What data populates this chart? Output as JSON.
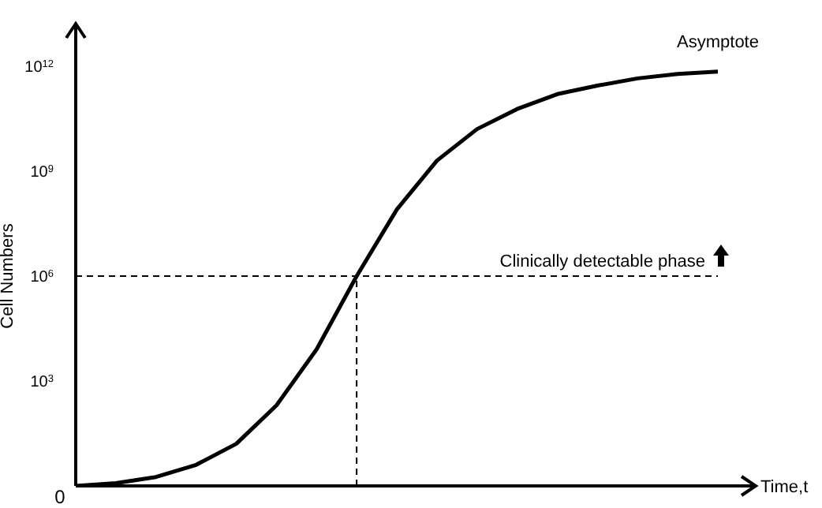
{
  "chart_data": {
    "type": "line",
    "xlabel": "Time,t",
    "ylabel": "Cell Numbers",
    "annotations": [
      "Asymptote",
      "0"
    ],
    "categories": [
      null,
      null,
      null,
      null,
      null,
      null,
      null,
      null,
      null,
      null,
      null,
      null,
      null,
      null,
      null,
      null,
      null
    ],
    "series": [
      {
        "color": "#000000",
        "values": [
          1,
          1.2,
          1.8,
          4,
          16,
          200,
          8000,
          1000000,
          80000000,
          2000000000,
          16000000000,
          60000000000,
          160000000000,
          280000000000,
          450000000000,
          600000000000,
          700000000000
        ]
      }
    ],
    "ylim": [
      1,
      1000000000000
    ],
    "log": "y",
    "yticks": [
      {
        "value": 1000,
        "label": "10$^{3}$"
      },
      {
        "value": 1000000,
        "label": "10$^{6}$"
      },
      {
        "value": 1000000000,
        "label": "10$^{9}$"
      },
      {
        "value": 1000000000000,
        "label": "10$^{12}$"
      }
    ],
    "tick_labels": "y",
    "marker": "none",
    "line_style": "solid",
    "ref_lines": [
      {
        "axis": "y",
        "value": 1000000,
        "label": "Clinically detectable phase",
        "line_style": "dashed",
        "color": "#000000"
      }
    ]
  }
}
